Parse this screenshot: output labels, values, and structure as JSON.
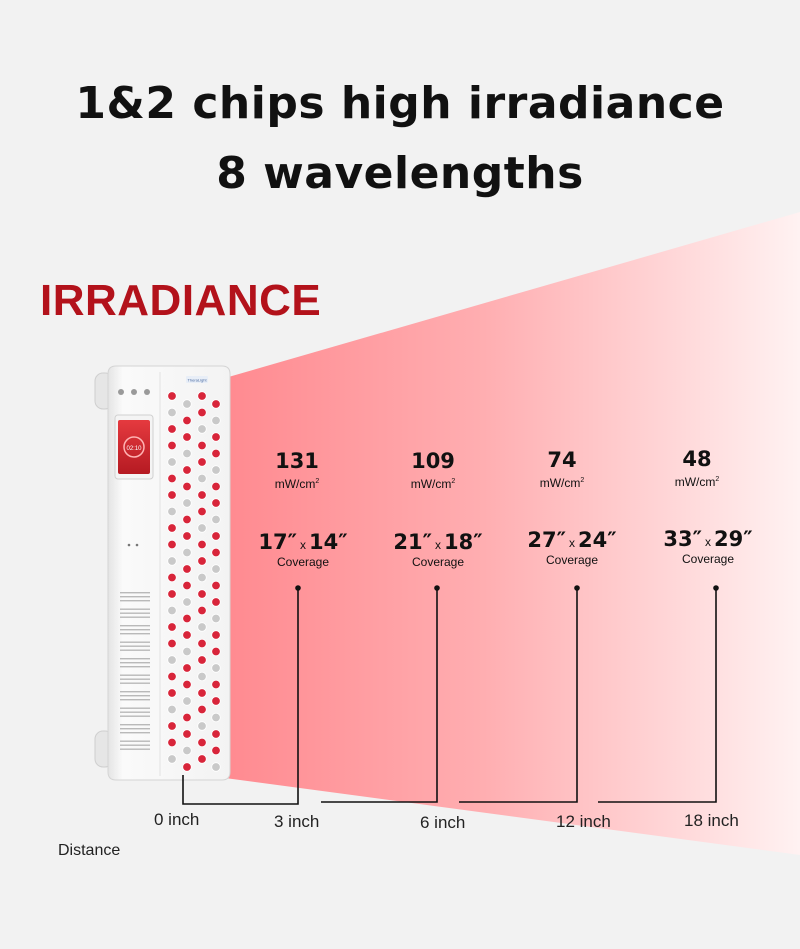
{
  "header": {
    "line1": "1&2 chips high irradiance",
    "line2": "8 wavelengths"
  },
  "section": {
    "label": "IRRADIANCE"
  },
  "device": {
    "screen_text": "02:10",
    "brand_label": "TheraLight"
  },
  "measurements": [
    {
      "irradiance": "131",
      "unit": "mW/cm",
      "unit_sup": "2",
      "width": "17″",
      "height": "14″",
      "x_label": "x",
      "coverage_label": "Coverage",
      "distance": "3 inch"
    },
    {
      "irradiance": "109",
      "unit": "mW/cm",
      "unit_sup": "2",
      "width": "21″",
      "height": "18″",
      "x_label": "x",
      "coverage_label": "Coverage",
      "distance": "6 inch"
    },
    {
      "irradiance": "74",
      "unit": "mW/cm",
      "unit_sup": "2",
      "width": "27″",
      "height": "24″",
      "x_label": "x",
      "coverage_label": "Coverage",
      "distance": "12 inch"
    },
    {
      "irradiance": "48",
      "unit": "mW/cm",
      "unit_sup": "2",
      "width": "33″",
      "height": "29″",
      "x_label": "x",
      "coverage_label": "Coverage",
      "distance": "18 inch"
    }
  ],
  "distance_axis": {
    "origin_label": "0 inch",
    "caption": "Distance"
  },
  "colors": {
    "title": "#111111",
    "section_label": "#b3121b",
    "beam_near": "#ff9095",
    "beam_far": "#fff0f0",
    "led_red": "#d8253a",
    "led_gray": "#c9c9c9"
  }
}
